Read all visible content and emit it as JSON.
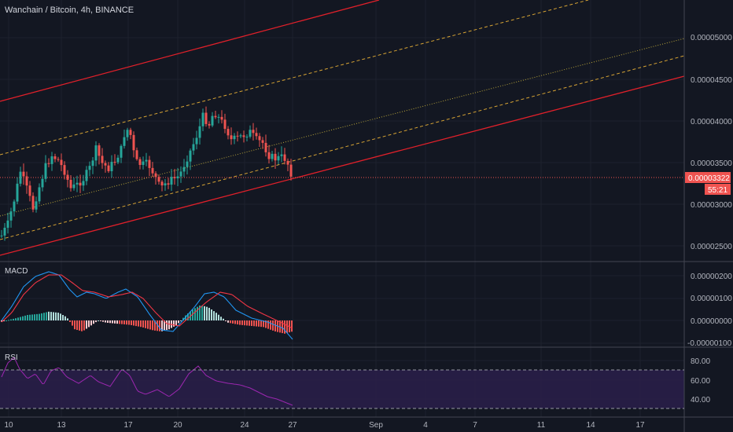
{
  "header": {
    "title": "Wanchain / Bitcoin, 4h, BINANCE"
  },
  "price_axis": {
    "labels": [
      "0.00005000",
      "0.00004500",
      "0.00004000",
      "0.00003500",
      "0.00003000",
      "0.00002500"
    ],
    "last_price": "0.00003322",
    "countdown": "55:21"
  },
  "macd": {
    "label": "MACD",
    "axis_labels": [
      "0.00000200",
      "0.00000100",
      "0.00000000",
      "-0.00000100"
    ]
  },
  "rsi": {
    "label": "RSI",
    "axis_labels": [
      "80.00",
      "60.00",
      "40.00"
    ]
  },
  "time_axis": {
    "labels": [
      "10",
      "13",
      "17",
      "20",
      "24",
      "27",
      "Sep",
      "4",
      "7",
      "11",
      "14",
      "17"
    ]
  },
  "colors": {
    "background": "#131722",
    "up": "#26a69a",
    "down": "#ef5350",
    "channel": "#e0202a",
    "dashed": "#d6a334",
    "macd_line": "#2196f3",
    "signal_line": "#f23645",
    "rsi_line": "#9c27b0",
    "rsi_band": "#2a1e4a"
  }
}
